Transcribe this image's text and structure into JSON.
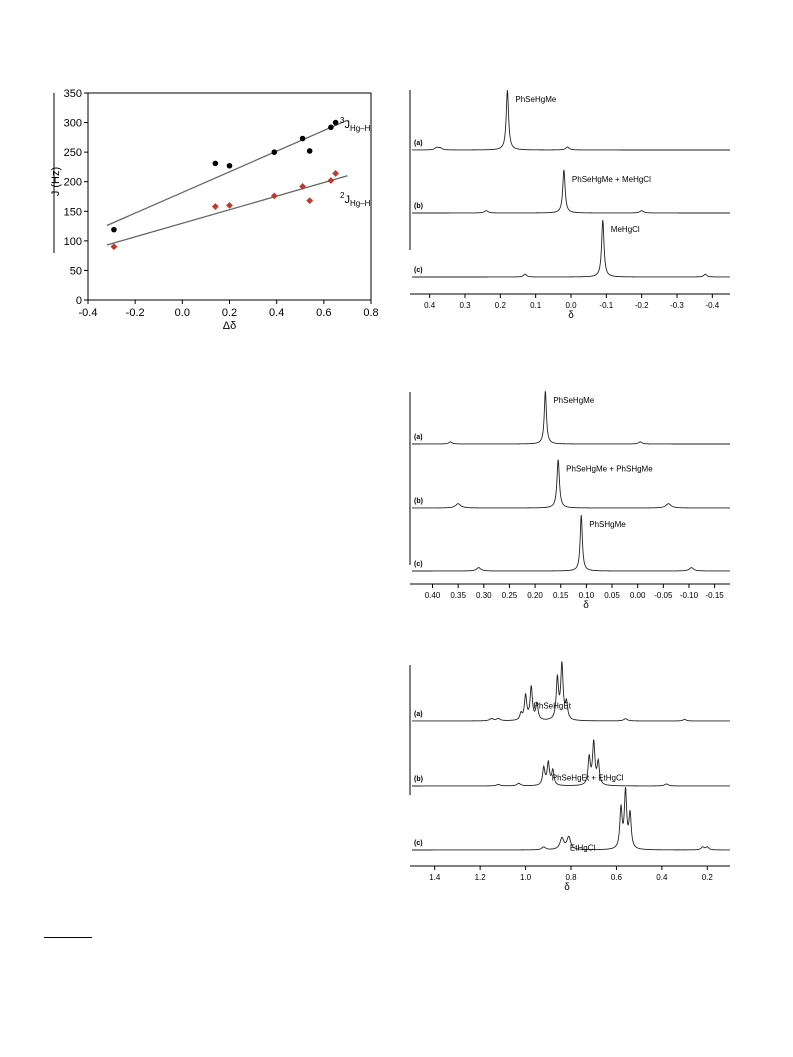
{
  "chart_data": [
    {
      "type": "scatter",
      "xlabel": "Δδ",
      "ylabel": "J (Hz)",
      "xlim": [
        -0.4,
        0.8
      ],
      "ylim": [
        0,
        350
      ],
      "x_ticks": [
        "-0.4",
        "-0.2",
        "0.0",
        "0.2",
        "0.4",
        "0.6",
        "0.8"
      ],
      "y_ticks": [
        "0",
        "50",
        "100",
        "150",
        "200",
        "250",
        "300",
        "350"
      ],
      "series": [
        {
          "name": "3JHg–H",
          "name_parts": {
            "sup": "3",
            "main": "J",
            "sub": "Hg–H"
          },
          "color": "#000000",
          "marker": "circle",
          "points": [
            [
              -0.29,
              119
            ],
            [
              0.14,
              231
            ],
            [
              0.2,
              227
            ],
            [
              0.39,
              250
            ],
            [
              0.51,
              273
            ],
            [
              0.54,
              252
            ],
            [
              0.63,
              292
            ],
            [
              0.65,
              300
            ]
          ],
          "fit": [
            [
              -0.32,
              126
            ],
            [
              0.7,
              304
            ]
          ]
        },
        {
          "name": "2JHg–H",
          "name_parts": {
            "sup": "2",
            "main": "J",
            "sub": "Hg–H"
          },
          "color": "#c0392b",
          "marker": "diamond",
          "points": [
            [
              -0.29,
              90
            ],
            [
              0.14,
              158
            ],
            [
              0.2,
              160
            ],
            [
              0.39,
              176
            ],
            [
              0.51,
              192
            ],
            [
              0.54,
              168
            ],
            [
              0.63,
              202
            ],
            [
              0.65,
              214
            ]
          ],
          "fit": [
            [
              -0.32,
              93
            ],
            [
              0.7,
              210
            ]
          ]
        }
      ]
    },
    {
      "type": "line",
      "xlabel": "δ",
      "xlim": [
        0.45,
        -0.45
      ],
      "x_ticks": [
        "0.4",
        "0.3",
        "0.2",
        "0.1",
        "0.0",
        "-0.1",
        "-0.2",
        "-0.3",
        "-0.4"
      ],
      "traces": [
        {
          "tag": "(a)",
          "label": "PhSeHgMe",
          "peaks": [
            [
              0.18,
              1.0,
              0.004
            ],
            [
              0.38,
              0.04,
              0.006
            ],
            [
              0.37,
              0.03,
              0.006
            ],
            [
              0.01,
              0.05,
              0.006
            ]
          ]
        },
        {
          "tag": "(b)",
          "label": "PhSeHgMe + MeHgCl",
          "peaks": [
            [
              0.02,
              0.9,
              0.004
            ],
            [
              0.24,
              0.05,
              0.006
            ],
            [
              -0.2,
              0.05,
              0.006
            ]
          ]
        },
        {
          "tag": "(c)",
          "label": "MeHgCl",
          "peaks": [
            [
              -0.09,
              1.0,
              0.004
            ],
            [
              0.13,
              0.05,
              0.005
            ],
            [
              -0.38,
              0.05,
              0.005
            ]
          ]
        }
      ]
    },
    {
      "type": "line",
      "xlabel": "δ",
      "xlim": [
        0.44,
        -0.18
      ],
      "x_ticks": [
        "0.40",
        "0.35",
        "0.30",
        "0.25",
        "0.20",
        "0.15",
        "0.10",
        "0.05",
        "0.00",
        "-0.05",
        "-0.10",
        "-0.15"
      ],
      "traces": [
        {
          "tag": "(a)",
          "label": "PhSeHgMe",
          "peaks": [
            [
              0.18,
              1.0,
              0.0025
            ],
            [
              0.365,
              0.04,
              0.004
            ],
            [
              -0.005,
              0.04,
              0.004
            ]
          ]
        },
        {
          "tag": "(b)",
          "label": "PhSeHgMe + PhSHgMe",
          "peaks": [
            [
              0.155,
              0.9,
              0.0028
            ],
            [
              0.35,
              0.08,
              0.006
            ],
            [
              -0.06,
              0.08,
              0.006
            ]
          ]
        },
        {
          "tag": "(c)",
          "label": "PhSHgMe",
          "peaks": [
            [
              0.11,
              1.0,
              0.0025
            ],
            [
              0.31,
              0.06,
              0.005
            ],
            [
              -0.105,
              0.06,
              0.005
            ]
          ]
        }
      ]
    },
    {
      "type": "line",
      "xlabel": "δ",
      "xlim": [
        1.5,
        0.1
      ],
      "x_ticks": [
        "1.4",
        "1.2",
        "1.0",
        "0.8",
        "0.6",
        "0.4",
        "0.2"
      ],
      "traces": [
        {
          "tag": "(a)",
          "label": "PhSeHgEt",
          "peaks": [
            [
              1.0,
              0.45,
              0.006
            ],
            [
              0.975,
              0.6,
              0.006
            ],
            [
              0.95,
              0.3,
              0.006
            ],
            [
              1.02,
              0.12,
              0.006
            ],
            [
              0.86,
              0.75,
              0.006
            ],
            [
              0.84,
              1.0,
              0.006
            ],
            [
              0.82,
              0.3,
              0.006
            ],
            [
              1.15,
              0.04,
              0.01
            ],
            [
              1.12,
              0.04,
              0.01
            ],
            [
              0.56,
              0.04,
              0.01
            ],
            [
              0.3,
              0.03,
              0.008
            ]
          ]
        },
        {
          "tag": "(b)",
          "label": "PhSeHgEt + EtHgCl",
          "peaks": [
            [
              0.92,
              0.35,
              0.006
            ],
            [
              0.9,
              0.45,
              0.006
            ],
            [
              0.88,
              0.3,
              0.006
            ],
            [
              0.72,
              0.55,
              0.006
            ],
            [
              0.7,
              0.85,
              0.006
            ],
            [
              0.68,
              0.45,
              0.006
            ],
            [
              0.38,
              0.04,
              0.01
            ],
            [
              1.03,
              0.05,
              0.01
            ],
            [
              1.12,
              0.03,
              0.01
            ]
          ]
        },
        {
          "tag": "(c)",
          "label": "EtHgCl",
          "peaks": [
            [
              0.84,
              0.2,
              0.01
            ],
            [
              0.81,
              0.22,
              0.01
            ],
            [
              0.58,
              0.7,
              0.006
            ],
            [
              0.56,
              1.0,
              0.006
            ],
            [
              0.54,
              0.6,
              0.006
            ],
            [
              0.92,
              0.05,
              0.01
            ],
            [
              0.22,
              0.05,
              0.008
            ],
            [
              0.2,
              0.05,
              0.008
            ]
          ]
        }
      ]
    }
  ]
}
